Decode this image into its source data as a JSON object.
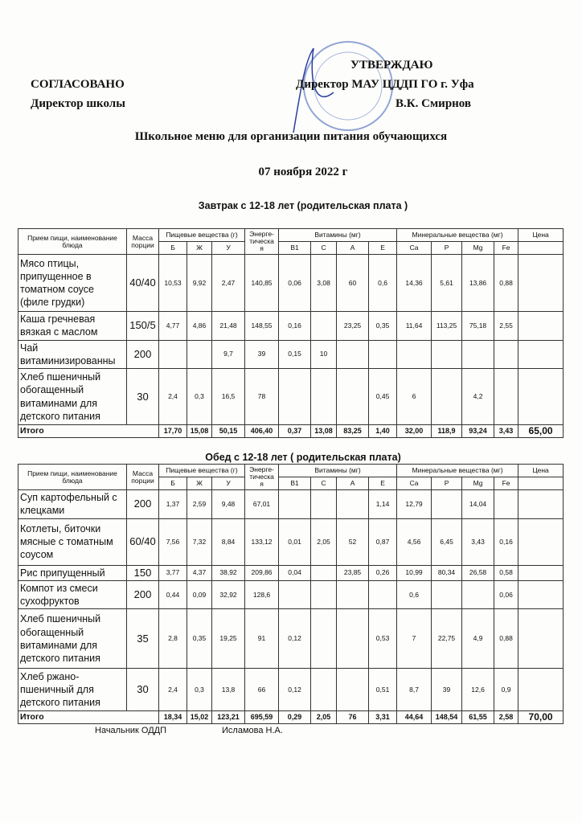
{
  "header": {
    "left_title": "СОГЛАСОВАНО",
    "left_subtitle": "Директор школы",
    "right_title": "УТВЕРЖДАЮ",
    "right_subtitle": "Директор МАУ ЦДДП ГО г. Уфа",
    "right_signer": "В.К. Смирнов",
    "doc_title": "Школьное меню для организации питания обучающихся",
    "date": "07 ноября 2022 г"
  },
  "stamp_color": "#3a5fb8",
  "columns": {
    "name": "Прием пищи, наименование блюда",
    "mass": "Масса порции",
    "nutrients": "Пищевые вещества (г)",
    "energy": "Энерге-тическа я",
    "vitamins": "Витамины (мг)",
    "minerals": "Минеральные вещества (мг)",
    "price": "Цена",
    "sub": [
      "Б",
      "Ж",
      "У",
      "B1",
      "C",
      "A",
      "E",
      "Ca",
      "P",
      "Mg",
      "Fe"
    ]
  },
  "breakfast": {
    "title": "Завтрак с 12-18 лет (родительская плата )",
    "rows": [
      {
        "name": "Мясо птицы, припущенное в томатном соусе (филе грудки)",
        "mass": "40/40",
        "v": [
          "10,53",
          "9,92",
          "2,47",
          "140,85",
          "0,06",
          "3,08",
          "60",
          "0,6",
          "14,36",
          "5,61",
          "13,86",
          "0,88"
        ]
      },
      {
        "name": "Каша гречневая вязкая с маслом",
        "mass": "150/5",
        "v": [
          "4,77",
          "4,86",
          "21,48",
          "148,55",
          "0,16",
          "",
          "23,25",
          "0,35",
          "11,64",
          "113,25",
          "75,18",
          "2,55"
        ]
      },
      {
        "name": "Чай витаминизированны",
        "mass": "200",
        "v": [
          "",
          "",
          "9,7",
          "39",
          "0,15",
          "10",
          "",
          "",
          "",
          "",
          "",
          ""
        ]
      },
      {
        "name": "Хлеб пшеничный обогащенный витаминами для детского питания",
        "mass": "30",
        "v": [
          "2,4",
          "0,3",
          "16,5",
          "78",
          "",
          "",
          "",
          "0,45",
          "6",
          "",
          "4,2",
          ""
        ]
      }
    ],
    "total": {
      "label": "Итого",
      "v": [
        "17,70",
        "15,08",
        "50,15",
        "406,40",
        "0,37",
        "13,08",
        "83,25",
        "1,40",
        "32,00",
        "118,9",
        "93,24",
        "3,43"
      ],
      "price": "65,00"
    }
  },
  "lunch": {
    "title": "Обед с 12-18 лет ( родительская плата)",
    "rows": [
      {
        "name": "Суп картофельный с клецками",
        "mass": "200",
        "v": [
          "1,37",
          "2,59",
          "9,48",
          "67,01",
          "",
          "",
          "",
          "1,14",
          "12,79",
          "",
          "14,04",
          ""
        ]
      },
      {
        "name": "Котлеты, биточки мясные с томатным соусом",
        "mass": "60/40",
        "v": [
          "7,56",
          "7,32",
          "8,84",
          "133,12",
          "0,01",
          "2,05",
          "52",
          "0,87",
          "4,56",
          "6,45",
          "3,43",
          "0,16"
        ]
      },
      {
        "name": "Рис припущенный",
        "mass": "150",
        "v": [
          "3,77",
          "4,37",
          "38,92",
          "209,86",
          "0,04",
          "",
          "23,85",
          "0,26",
          "10,99",
          "80,34",
          "26,58",
          "0,58"
        ]
      },
      {
        "name": "Компот из смеси сухофруктов",
        "mass": "200",
        "v": [
          "0,44",
          "0,09",
          "32,92",
          "128,6",
          "",
          "",
          "",
          "",
          "0,6",
          "",
          "",
          "0,06"
        ]
      },
      {
        "name": "Хлеб пшеничный обогащенный витаминами для детского питания",
        "mass": "35",
        "v": [
          "2,8",
          "0,35",
          "19,25",
          "91",
          "0,12",
          "",
          "",
          "0,53",
          "7",
          "22,75",
          "4,9",
          "0,88"
        ]
      },
      {
        "name": "Хлеб ржано-пшеничный для детского питания",
        "mass": "30",
        "v": [
          "2,4",
          "0,3",
          "13,8",
          "66",
          "0,12",
          "",
          "",
          "0,51",
          "8,7",
          "39",
          "12,6",
          "0,9"
        ]
      }
    ],
    "total": {
      "label": "Итого",
      "v": [
        "18,34",
        "15,02",
        "123,21",
        "695,59",
        "0,29",
        "2,05",
        "76",
        "3,31",
        "44,64",
        "148,54",
        "61,55",
        "2,58"
      ],
      "price": "70,00"
    }
  },
  "footer": {
    "position": "Начальник ОДДП",
    "name": "Исламова Н.А."
  }
}
